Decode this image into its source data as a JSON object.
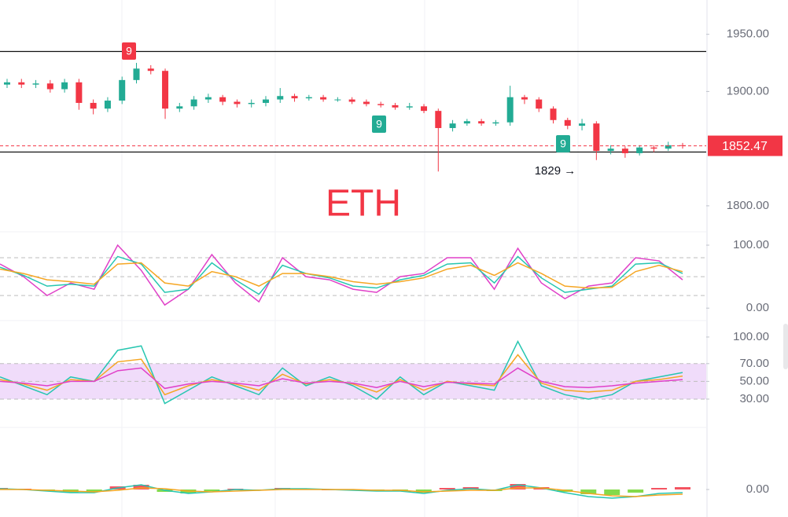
{
  "chart_data": [
    {
      "type": "candlestick",
      "title": "ETH",
      "opens": [
        1906,
        1908,
        1906,
        1907,
        1902,
        1908,
        1890,
        1885,
        1892,
        1910,
        1920,
        1918,
        1885,
        1887,
        1893,
        1895,
        1891,
        1889,
        1890,
        1893,
        1896,
        1894,
        1895,
        1893,
        1893,
        1891,
        1889,
        1888,
        1886,
        1887,
        1883,
        1868,
        1872,
        1874,
        1872,
        1873,
        1895,
        1893,
        1885,
        1875,
        1870,
        1872,
        1848,
        1850,
        1846,
        1851,
        1850,
        1853
      ],
      "closes": [
        1908,
        1906,
        1907,
        1902,
        1908,
        1890,
        1885,
        1892,
        1910,
        1920,
        1918,
        1885,
        1887,
        1893,
        1895,
        1891,
        1889,
        1890,
        1893,
        1896,
        1894,
        1895,
        1893,
        1893,
        1891,
        1889,
        1888,
        1886,
        1887,
        1883,
        1868,
        1872,
        1874,
        1872,
        1873,
        1895,
        1893,
        1885,
        1875,
        1870,
        1872,
        1848,
        1850,
        1846,
        1851,
        1850,
        1853,
        1852.47
      ],
      "highs": [
        1911,
        1911,
        1910,
        1910,
        1911,
        1911,
        1893,
        1895,
        1913,
        1925,
        1923,
        1920,
        1890,
        1896,
        1898,
        1897,
        1893,
        1893,
        1896,
        1903,
        1898,
        1897,
        1897,
        1895,
        1895,
        1893,
        1891,
        1890,
        1890,
        1889,
        1885,
        1875,
        1876,
        1876,
        1875,
        1905,
        1897,
        1895,
        1887,
        1877,
        1876,
        1874,
        1853,
        1852,
        1853,
        1853,
        1856,
        1855
      ],
      "lows": [
        1903,
        1903,
        1903,
        1899,
        1899,
        1884,
        1880,
        1882,
        1889,
        1907,
        1915,
        1876,
        1882,
        1884,
        1890,
        1888,
        1886,
        1886,
        1887,
        1890,
        1891,
        1892,
        1891,
        1891,
        1889,
        1887,
        1886,
        1884,
        1884,
        1881,
        1830,
        1865,
        1870,
        1870,
        1870,
        1870,
        1889,
        1882,
        1872,
        1867,
        1866,
        1840,
        1845,
        1842,
        1844,
        1847,
        1848,
        1850
      ],
      "up_color": "#22ab94",
      "down_color": "#f23645",
      "ylim": [
        1780.7,
        1980
      ],
      "yticks": [
        {
          "value": 1950,
          "label": "1950.00"
        },
        {
          "value": 1900,
          "label": "1900.00"
        },
        {
          "value": 1800,
          "label": "1800.00"
        }
      ],
      "hlines": [
        1935,
        1847
      ],
      "last_price": 1852.47,
      "annotations": [
        "9",
        "9",
        "9",
        "1829 →"
      ]
    },
    {
      "type": "line",
      "series": [
        {
          "color": "#e040c8",
          "values": [
            70,
            50,
            20,
            40,
            30,
            100,
            60,
            5,
            30,
            85,
            40,
            10,
            80,
            50,
            45,
            30,
            25,
            50,
            55,
            80,
            80,
            30,
            95,
            40,
            15,
            35,
            40,
            80,
            75,
            45
          ]
        },
        {
          "color": "#26c6b0",
          "values": [
            65,
            52,
            35,
            38,
            35,
            82,
            70,
            25,
            30,
            72,
            45,
            22,
            68,
            55,
            48,
            35,
            32,
            45,
            52,
            70,
            72,
            40,
            82,
            48,
            25,
            30,
            35,
            70,
            72,
            55
          ]
        },
        {
          "color": "#f5a623",
          "values": [
            62,
            55,
            45,
            42,
            38,
            70,
            72,
            40,
            35,
            58,
            50,
            35,
            55,
            55,
            50,
            42,
            38,
            42,
            48,
            62,
            68,
            52,
            72,
            55,
            35,
            32,
            33,
            58,
            68,
            58
          ]
        }
      ],
      "ylim": [
        -16,
        115
      ],
      "yticks": [
        {
          "value": 100,
          "label": "100.00"
        },
        {
          "value": 0,
          "label": "0.00"
        }
      ],
      "guides": [
        20,
        50,
        80
      ]
    },
    {
      "type": "line",
      "series": [
        {
          "color": "#26c6b0",
          "values": [
            55,
            45,
            35,
            55,
            50,
            85,
            90,
            25,
            40,
            55,
            45,
            35,
            65,
            45,
            55,
            45,
            30,
            55,
            35,
            50,
            45,
            40,
            95,
            45,
            35,
            30,
            35,
            50,
            55,
            60
          ]
        },
        {
          "color": "#f5a623",
          "values": [
            52,
            47,
            40,
            52,
            50,
            72,
            75,
            35,
            45,
            52,
            47,
            40,
            58,
            47,
            52,
            47,
            38,
            52,
            40,
            50,
            47,
            45,
            80,
            48,
            40,
            38,
            40,
            50,
            52,
            56
          ]
        },
        {
          "color": "#e040c8",
          "values": [
            50,
            48,
            45,
            50,
            50,
            62,
            65,
            42,
            47,
            50,
            48,
            45,
            53,
            48,
            50,
            48,
            43,
            50,
            44,
            49,
            48,
            47,
            65,
            50,
            44,
            43,
            45,
            48,
            50,
            52
          ]
        }
      ],
      "ylim": [
        1.6,
        115
      ],
      "yticks": [
        {
          "value": 100,
          "label": "100.00"
        },
        {
          "value": 70,
          "label": "70.00"
        },
        {
          "value": 50,
          "label": "50.00"
        },
        {
          "value": 30,
          "label": "30.00"
        }
      ],
      "guides": [
        30,
        50,
        70
      ],
      "band": [
        30,
        70
      ],
      "band_color": "#f0dcfa"
    },
    {
      "type": "macd",
      "histogram": [
        2,
        1,
        -2,
        -4,
        -3,
        4,
        6,
        -3,
        -5,
        -2,
        1,
        -1,
        2,
        1,
        0,
        -1,
        -2,
        -1,
        -4,
        2,
        3,
        -2,
        7,
        3,
        -3,
        -6,
        -7,
        -4,
        2,
        3
      ],
      "up_color": "#f23645",
      "down_color": "#6fd42c",
      "series": [
        {
          "color": "#26c6b0",
          "values": [
            1,
            0,
            -2,
            -4,
            -4,
            2,
            6,
            -1,
            -5,
            -3,
            0,
            -1,
            1,
            1,
            0,
            -1,
            -2,
            -2,
            -5,
            -1,
            1,
            -1,
            6,
            2,
            -4,
            -9,
            -11,
            -9,
            -5,
            -4
          ]
        },
        {
          "color": "#f5a623",
          "values": [
            0,
            0,
            -1,
            -2,
            -3,
            -1,
            2,
            1,
            -2,
            -3,
            -2,
            -1,
            0,
            0,
            0,
            0,
            -1,
            -1,
            -3,
            -2,
            -1,
            -1,
            2,
            2,
            -1,
            -5,
            -8,
            -9,
            -7,
            -6
          ]
        }
      ],
      "ylim": [
        -32,
        75
      ],
      "yticks": [
        {
          "value": 0,
          "label": "0.00"
        }
      ]
    }
  ]
}
